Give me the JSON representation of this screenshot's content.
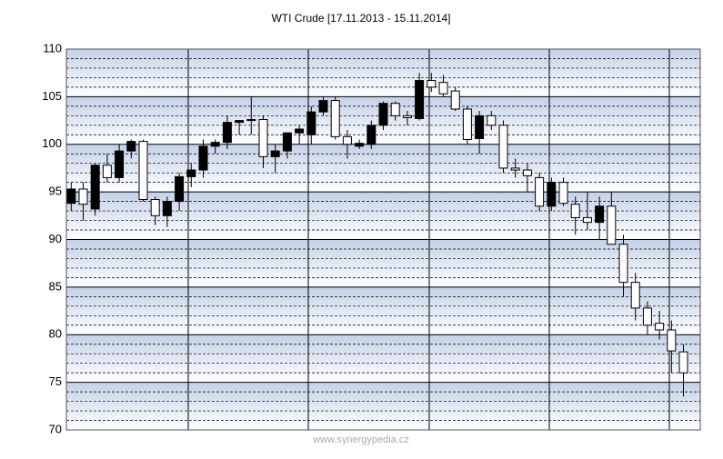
{
  "chart_data": {
    "type": "candlestick",
    "title": "WTI Crude  [17.11.2013 - 15.11.2014]",
    "footer": "www.synergypedia.cz",
    "open": [
      93.8,
      95.3,
      93.2,
      97.8,
      96.5,
      99.3,
      100.3,
      94.2,
      92.5,
      94,
      96.6,
      97.3,
      99.8,
      100.2,
      102.3,
      102.5,
      102.6,
      98.7,
      99.3,
      101.2,
      101,
      103.4,
      104.6,
      100.8,
      99.8,
      100,
      102,
      104.3,
      103,
      102.7,
      106.7,
      106.5,
      105.6,
      103.7,
      100.6,
      103,
      102,
      97.5,
      97.3,
      96.5,
      93.5,
      96,
      93.7,
      92.3,
      91.8,
      93.5,
      89.5,
      85.5,
      82.8,
      81.2,
      80.5,
      78.2
    ],
    "high": [
      96,
      96,
      98,
      99,
      100,
      100.5,
      100.5,
      94.5,
      94.5,
      97,
      98,
      100.5,
      100.5,
      103,
      102.5,
      105,
      103,
      100,
      101,
      102,
      104,
      105,
      105,
      101.5,
      100.5,
      102.5,
      104.5,
      104.5,
      103.5,
      107.5,
      107.5,
      107.3,
      106,
      104,
      103.5,
      103.5,
      102.5,
      98.5,
      98,
      97,
      96.5,
      96.5,
      94.5,
      95,
      94.5,
      95,
      90.5,
      86.5,
      83.5,
      82.5,
      81.5,
      79
    ],
    "low": [
      93,
      92,
      92.5,
      96,
      96,
      98.5,
      94,
      91.5,
      91.3,
      93,
      95.5,
      96.5,
      99,
      99.5,
      101,
      101,
      97.5,
      97,
      98.5,
      100,
      100,
      103,
      100.5,
      98.5,
      99.5,
      99.5,
      101.5,
      102.5,
      102,
      102.5,
      105.5,
      105,
      103.5,
      100,
      99,
      101.5,
      97,
      96.5,
      95,
      93,
      93,
      93.5,
      90.5,
      91,
      90,
      89.5,
      84,
      81.5,
      80,
      79.5,
      76,
      73.5
    ],
    "close": [
      95.3,
      93.7,
      97.8,
      96.5,
      99.3,
      100.3,
      94.2,
      92.5,
      94,
      96.6,
      97.3,
      99.8,
      100.2,
      102.3,
      102.5,
      102.6,
      98.7,
      99.3,
      101.2,
      101.6,
      103.4,
      104.6,
      100.8,
      100,
      100.1,
      102,
      104.3,
      103,
      102.8,
      106.7,
      106,
      105.3,
      103.7,
      100.5,
      103,
      102,
      97.5,
      97.3,
      96.7,
      93.5,
      96,
      93.8,
      92.3,
      91.8,
      93.5,
      89.5,
      85.5,
      82.8,
      81,
      80.5,
      78.3,
      76
    ],
    "up_color": "#000000",
    "down_color": "#ffffff",
    "ylim": [
      70,
      110
    ],
    "yticks": [
      70,
      75,
      80,
      85,
      90,
      95,
      100,
      105,
      110
    ],
    "grid": true
  }
}
